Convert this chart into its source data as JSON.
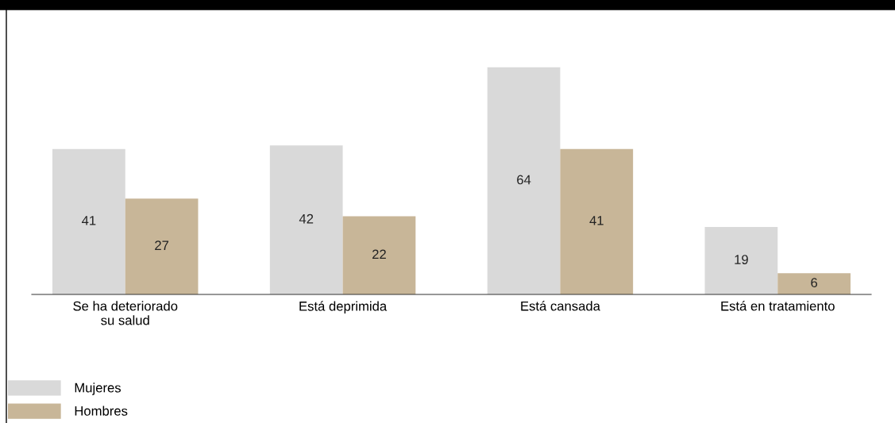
{
  "chart_data": {
    "type": "bar",
    "categories": [
      "Se ha deteriorado\nsu salud",
      "Está deprimida",
      "Está cansada",
      "Está en tratamiento"
    ],
    "series": [
      {
        "name": "Mujeres",
        "color": "#d9d9d9",
        "values": [
          41,
          42,
          64,
          19
        ]
      },
      {
        "name": "Hombres",
        "color": "#c8b698",
        "values": [
          27,
          22,
          41,
          6
        ]
      }
    ],
    "data_labels": true,
    "legend": "bottom left",
    "grid": false,
    "tick_labels": "x"
  }
}
